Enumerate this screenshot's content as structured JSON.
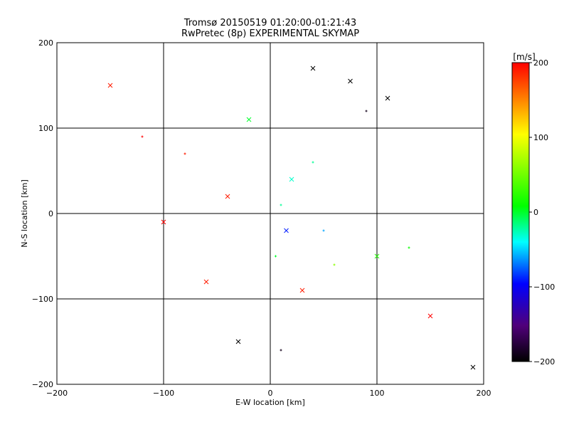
{
  "chart_data": {
    "type": "scatter",
    "title": "Tromsø 20150519 01:20:00-01:21:43",
    "subtitle": "RwPretec (8p) EXPERIMENTAL SKYMAP",
    "xlabel": "E-W location [km]",
    "ylabel": "N-S location [km]",
    "xlim": [
      -200,
      200
    ],
    "ylim": [
      -200,
      200
    ],
    "x_ticks": [
      -200,
      -100,
      0,
      100,
      200
    ],
    "y_ticks": [
      -200,
      -100,
      0,
      100,
      200
    ],
    "x_tick_labels": [
      "−200",
      "−100",
      "0",
      "100",
      "200"
    ],
    "y_tick_labels": [
      "−200",
      "−100",
      "0",
      "100",
      "200"
    ],
    "grid": true,
    "markers": [
      "cross",
      "x"
    ],
    "colorbar": {
      "label": "[m/s]",
      "range": [
        -200,
        200
      ],
      "ticks": [
        200,
        100,
        0,
        -100,
        -200
      ],
      "tick_labels": [
        "200",
        "100",
        "0",
        "−100",
        "−200"
      ],
      "colormap": [
        "#000000",
        "#50007a",
        "#0000ff",
        "#00ffff",
        "#00ff00",
        "#ffff00",
        "#ff0000"
      ]
    },
    "points": [
      {
        "x": 10,
        "y": 10,
        "v": -20,
        "m": "cross"
      },
      {
        "x": 5,
        "y": -50,
        "v": 0,
        "m": "cross"
      },
      {
        "x": 75,
        "y": 155,
        "v": -200,
        "m": "x"
      },
      {
        "x": 110,
        "y": 135,
        "v": -200,
        "m": "x"
      },
      {
        "x": 40,
        "y": 170,
        "v": -200,
        "m": "x"
      },
      {
        "x": 90,
        "y": 120,
        "v": -190,
        "m": "cross"
      },
      {
        "x": -120,
        "y": 90,
        "v": 200,
        "m": "cross"
      },
      {
        "x": -80,
        "y": 70,
        "v": 190,
        "m": "cross"
      },
      {
        "x": -40,
        "y": 20,
        "v": 190,
        "m": "x"
      },
      {
        "x": -60,
        "y": -80,
        "v": 190,
        "m": "x"
      },
      {
        "x": -30,
        "y": -150,
        "v": -200,
        "m": "x"
      },
      {
        "x": 10,
        "y": -160,
        "v": -190,
        "m": "cross"
      },
      {
        "x": 30,
        "y": -90,
        "v": 190,
        "m": "x"
      },
      {
        "x": 60,
        "y": -60,
        "v": 60,
        "m": "cross"
      },
      {
        "x": 100,
        "y": -50,
        "v": 20,
        "m": "x"
      },
      {
        "x": 130,
        "y": -40,
        "v": 10,
        "m": "cross"
      },
      {
        "x": 20,
        "y": 40,
        "v": -30,
        "m": "x"
      },
      {
        "x": 40,
        "y": 60,
        "v": -20,
        "m": "cross"
      },
      {
        "x": -20,
        "y": 110,
        "v": 0,
        "m": "x"
      },
      {
        "x": 15,
        "y": -20,
        "v": -90,
        "m": "x"
      },
      {
        "x": 50,
        "y": -20,
        "v": -60,
        "m": "cross"
      },
      {
        "x": -100,
        "y": -10,
        "v": 200,
        "m": "x"
      },
      {
        "x": -150,
        "y": 150,
        "v": 190,
        "m": "x"
      },
      {
        "x": 150,
        "y": -120,
        "v": 200,
        "m": "x"
      },
      {
        "x": 190,
        "y": -180,
        "v": -200,
        "m": "x"
      }
    ]
  }
}
